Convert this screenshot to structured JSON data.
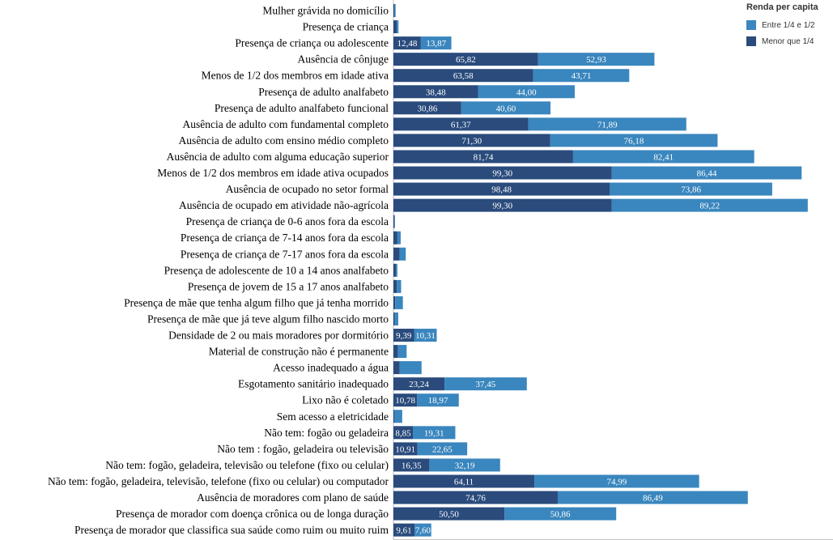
{
  "chart_data": {
    "type": "bar",
    "orientation": "horizontal",
    "stacked": true,
    "legend_title": "Renda per capita",
    "legend_position": "top-right",
    "categories": [
      "Mulher grávida no domicílio",
      "Presença de criança",
      "Presença de criança ou adolescente",
      "Ausência de cônjuge",
      "Menos de 1/2 dos membros em idade ativa",
      "Presença de adulto analfabeto",
      "Presença de adulto analfabeto funcional",
      "Ausência de adulto com fundamental completo",
      "Ausência de adulto com ensino médio completo",
      "Ausência de adulto com alguma educação superior",
      "Menos de 1/2 dos membros em idade ativa ocupados",
      "Ausência de ocupado no setor formal",
      "Ausência de ocupado em atividade não-agrícola",
      "Presença de criança de 0-6 anos fora da escola",
      "Presença de criança de 7-14 anos fora da escola",
      "Presença de criança de 7-17 anos fora da escola",
      "Presença de adolescente de 10 a 14 anos analfabeto",
      "Presença de jovem de 15 a 17 anos analfabeto",
      "Presença de mãe que tenha algum filho que já tenha morrido",
      "Presença de mãe que já teve algum filho nascido morto",
      "Densidade de 2 ou mais moradores por dormitório",
      "Material de construção não é permanente",
      "Acesso inadequado a água",
      "Esgotamento sanitário inadequado",
      "Lixo não é coletado",
      "Sem acesso a eletricidade",
      "Não tem: fogão ou geladeira",
      "Não tem : fogão, geladeira ou televisão",
      "Não tem: fogão, geladeira, televisão ou telefone (fixo ou celular)",
      "Não tem: fogão, geladeira, televisão, telefone (fixo ou celular) ou computador",
      "Ausência de moradores com plano de saúde",
      "Presença de morador com doença crônica ou de longa duração",
      "Presença de morador que classifica sua saúde como ruim ou muito ruim"
    ],
    "series": [
      {
        "name": "Menor que 1/4",
        "color": "#2a4b7c",
        "values": [
          0.5,
          1.5,
          12.48,
          65.82,
          63.58,
          38.48,
          30.86,
          61.37,
          71.3,
          81.74,
          99.3,
          98.48,
          99.3,
          0.4,
          1.8,
          2.8,
          1.2,
          1.5,
          0.8,
          0.6,
          9.39,
          2.0,
          2.8,
          23.24,
          10.78,
          0.5,
          8.85,
          10.91,
          16.35,
          64.11,
          74.76,
          50.5,
          9.61
        ],
        "labels": [
          "",
          "",
          "12,48",
          "65,82",
          "63,58",
          "38,48",
          "30,86",
          "61,37",
          "71,30",
          "81,74",
          "99,30",
          "98,48",
          "99,30",
          "",
          "",
          "",
          "",
          "",
          "",
          "",
          "9,39",
          "",
          "",
          "23,24",
          "10,78",
          "",
          "8,85",
          "10,91",
          "16,35",
          "64,11",
          "74,76",
          "50,50",
          "9,61"
        ]
      },
      {
        "name": "Entre 1/4 e 1/2",
        "color": "#3a86be",
        "values": [
          0.5,
          0.8,
          13.87,
          52.93,
          43.71,
          44.0,
          40.6,
          71.89,
          76.18,
          82.41,
          86.44,
          73.86,
          89.22,
          0.3,
          1.5,
          2.8,
          0.6,
          2.0,
          3.5,
          1.6,
          10.31,
          4.0,
          10.0,
          37.45,
          18.97,
          3.5,
          19.31,
          22.65,
          32.19,
          74.99,
          86.49,
          50.86,
          7.6
        ],
        "labels": [
          "",
          "",
          "13,87",
          "52,93",
          "43,71",
          "44,00",
          "40,60",
          "71,89",
          "76,18",
          "82,41",
          "86,44",
          "73,86",
          "89,22",
          "",
          "",
          "",
          "",
          "",
          "",
          "",
          "10,31",
          "",
          "",
          "37,45",
          "18,97",
          "",
          "19,31",
          "22,65",
          "32,19",
          "74,99",
          "86,49",
          "50,86",
          "7,60"
        ]
      }
    ],
    "xlim": [
      0,
      200
    ],
    "xlabel": "",
    "ylabel": "",
    "grid": false
  }
}
